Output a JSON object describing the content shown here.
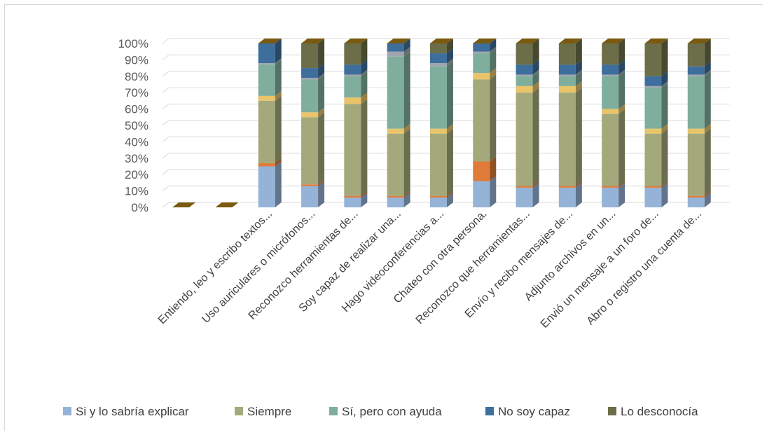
{
  "chart_data": {
    "type": "bar",
    "stacked": true,
    "three_d": true,
    "ylim": [
      0,
      100
    ],
    "y_ticks": [
      "0%",
      "10%",
      "20%",
      "30%",
      "40%",
      "50%",
      "60%",
      "70%",
      "80%",
      "90%",
      "100%"
    ],
    "grid": true,
    "legend_position": "bottom",
    "categories": [
      "",
      "",
      "Entiendo, leo y escribo textos...",
      "Uso auriculares o micrófonos...",
      "Reconozco herramientas de...",
      "Soy capaz de realizar una...",
      "Hago videoconferencias a...",
      "Chateo con otra persona.",
      "Reconozco que herramientas...",
      "Envío y recibo mensajes de...",
      "Adjunto archivos en un...",
      "Envió un mensaje a un foro de...",
      "Abro o registro una cuenta de..."
    ],
    "series": [
      {
        "name": "Si y lo sabría explicar",
        "color": "#95B3D7",
        "values": [
          0,
          0,
          25,
          13,
          6,
          6,
          6,
          16,
          12,
          12,
          12,
          12,
          6
        ]
      },
      {
        "name": "",
        "color": "#E07B39",
        "values": [
          0,
          0,
          2,
          1,
          1,
          1,
          1,
          12,
          1,
          1,
          1,
          1,
          1
        ]
      },
      {
        "name": "Siempre",
        "color": "#A3A97A",
        "values": [
          0,
          0,
          38,
          41,
          56,
          38,
          38,
          50,
          57,
          57,
          44,
          32,
          38
        ]
      },
      {
        "name": "",
        "color": "#E9C46A",
        "values": [
          0,
          0,
          3,
          3,
          4,
          3,
          3,
          4,
          4,
          4,
          3,
          3,
          3
        ]
      },
      {
        "name": "Sí, pero con ayuda",
        "color": "#7FAE9C",
        "values": [
          0,
          0,
          19,
          20,
          13,
          44,
          38,
          12,
          6,
          6,
          20,
          25,
          32
        ]
      },
      {
        "name": "",
        "color": "#A0A6AE",
        "values": [
          0,
          0,
          1,
          1,
          1,
          3,
          2,
          1,
          1,
          1,
          1,
          1,
          1
        ]
      },
      {
        "name": "No soy capaz",
        "color": "#3D6E9C",
        "values": [
          0,
          0,
          12,
          6,
          6,
          5,
          6,
          5,
          6,
          6,
          6,
          6,
          5
        ]
      },
      {
        "name": "Lo desconocía",
        "color": "#6B6E48",
        "values": [
          0,
          0,
          0,
          15,
          13,
          0,
          6,
          0,
          13,
          13,
          13,
          20,
          14
        ]
      }
    ]
  }
}
